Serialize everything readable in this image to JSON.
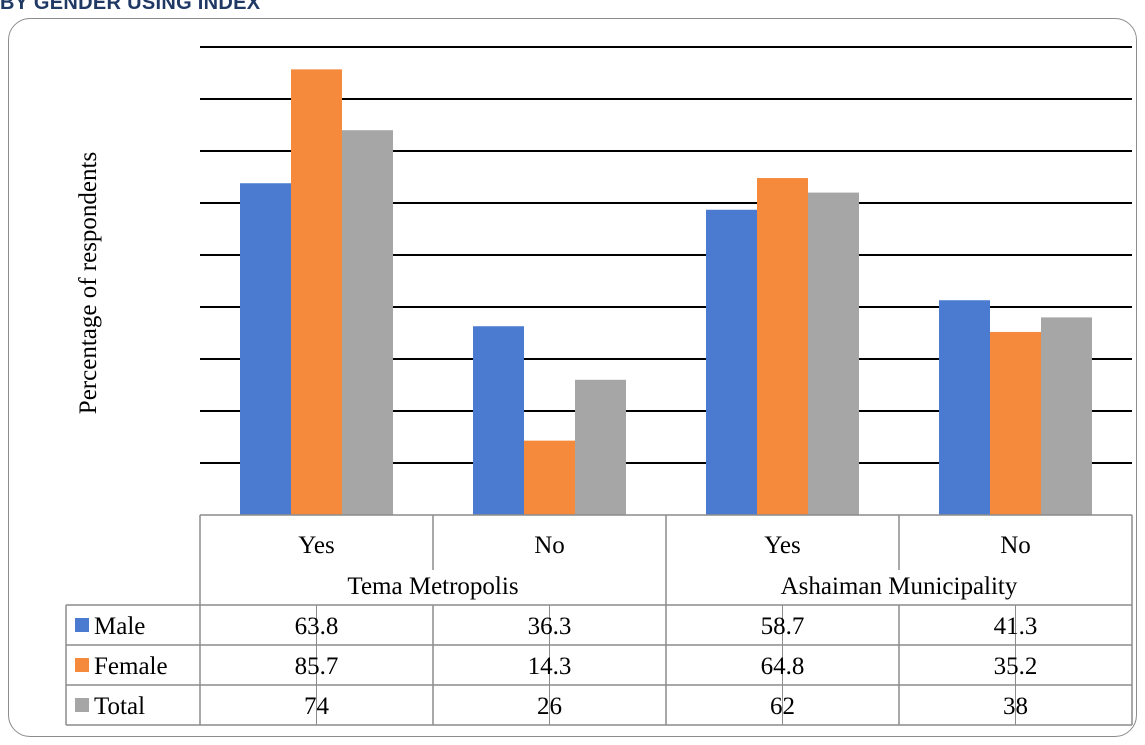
{
  "header": {
    "caption": "BY GENDER USING INDEX"
  },
  "colors": {
    "Male": "#4a7bd0",
    "Female": "#f58a3c",
    "Total": "#a6a6a6",
    "grid": "#000000",
    "table_lines": "#8c8c8c"
  },
  "chart_data": {
    "type": "bar",
    "ylabel": "Percentage of respondents",
    "ylim": [
      0,
      90
    ],
    "y_tick_step": 10,
    "grid": true,
    "legend_placement": "data-table-left",
    "groups": [
      {
        "label": "Tema Metropolis",
        "categories": [
          "Yes",
          "No"
        ]
      },
      {
        "label": "Ashaiman Municipality",
        "categories": [
          "Yes",
          "No"
        ]
      }
    ],
    "categories": [
      "Yes",
      "No",
      "Yes",
      "No"
    ],
    "series": [
      {
        "name": "Male",
        "values": [
          63.8,
          36.3,
          58.7,
          41.3
        ]
      },
      {
        "name": "Female",
        "values": [
          85.7,
          14.3,
          64.8,
          35.2
        ]
      },
      {
        "name": "Total",
        "values": [
          74,
          26,
          62,
          38
        ]
      }
    ],
    "data_table": {
      "rows": [
        {
          "label": "Male",
          "cells": [
            "63.8",
            "36.3",
            "58.7",
            "41.3"
          ]
        },
        {
          "label": "Female",
          "cells": [
            "85.7",
            "14.3",
            "64.8",
            "35.2"
          ]
        },
        {
          "label": "Total",
          "cells": [
            "74",
            "26",
            "62",
            "38"
          ]
        }
      ]
    }
  }
}
